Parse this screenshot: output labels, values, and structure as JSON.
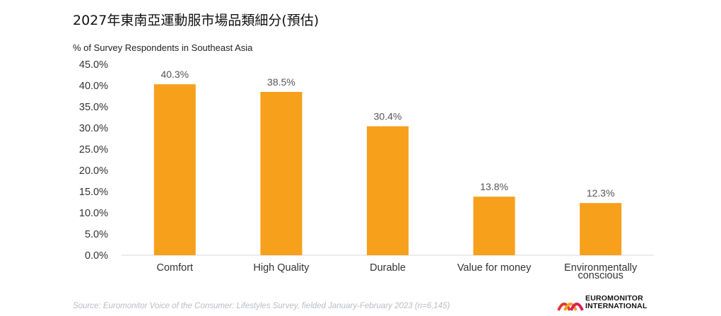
{
  "title": "2027年東南亞運動服市場品類細分(預估)",
  "subtitle": "% of Survey Respondents in Southeast Asia",
  "source": "Source: Euromonitor Voice of the Consumer: Lifestyles Survey, fielded January-February 2023 (n=6,145)",
  "logo": {
    "line1": "EUROMONITOR",
    "line2": "INTERNATIONAL"
  },
  "colors": {
    "bar": "#F7A01C",
    "axis_text": "#333333",
    "label_text": "#555555",
    "baseline": "#d9d9d9"
  },
  "chart_data": {
    "type": "bar",
    "categories": [
      "Comfort",
      "High Quality",
      "Durable",
      "Value for money",
      "Environmentally conscious"
    ],
    "category_labels": [
      [
        "Comfort"
      ],
      [
        "High Quality"
      ],
      [
        "Durable"
      ],
      [
        "Value for money"
      ],
      [
        "Environmentally",
        "conscious"
      ]
    ],
    "values": [
      40.3,
      38.5,
      30.4,
      13.8,
      12.3
    ],
    "data_labels": [
      "40.3%",
      "38.5%",
      "30.4%",
      "13.8%",
      "12.3%"
    ],
    "ylabel": "% of Survey Respondents in Southeast Asia",
    "ylim": [
      0,
      45
    ],
    "yticks": [
      0,
      5,
      10,
      15,
      20,
      25,
      30,
      35,
      40,
      45
    ],
    "ytick_labels": [
      "0.0%",
      "5.0%",
      "10.0%",
      "15.0%",
      "20.0%",
      "25.0%",
      "30.0%",
      "35.0%",
      "40.0%",
      "45.0%"
    ],
    "grid": false,
    "legend": "none"
  }
}
